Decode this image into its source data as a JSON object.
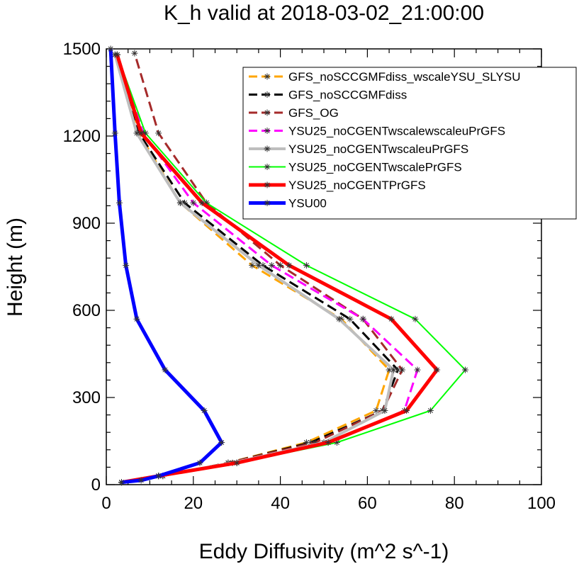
{
  "chart_data": {
    "type": "line",
    "title": "K_h valid at 2018-03-02_21:00:00",
    "xlabel": "Eddy Diffusivity (m^2 s^-1)",
    "ylabel": "Height (m)",
    "xlim": [
      0,
      100
    ],
    "ylim": [
      0,
      1500
    ],
    "xticks": [
      "0",
      "20",
      "40",
      "60",
      "80",
      "100"
    ],
    "yticks": [
      "0",
      "300",
      "600",
      "900",
      "1200",
      "1500"
    ],
    "legend_position": "top-right",
    "grid": false,
    "series": [
      {
        "name": "GFS_noSCCGMFdiss_wscaleYSU_SLYSU",
        "color": "#ffa500",
        "dash": "dashed",
        "width": 3,
        "points": [
          [
            3.5,
            8
          ],
          [
            13,
            30
          ],
          [
            28,
            75
          ],
          [
            46,
            145
          ],
          [
            62,
            255
          ],
          [
            65,
            395
          ],
          [
            54,
            570
          ],
          [
            33.5,
            755
          ],
          [
            17,
            970
          ],
          [
            7.5,
            1210
          ],
          [
            2,
            1480
          ]
        ]
      },
      {
        "name": "GFS_noSCCGMFdiss",
        "color": "#000000",
        "dash": "dashed",
        "width": 3,
        "points": [
          [
            3.5,
            8
          ],
          [
            13,
            30
          ],
          [
            28,
            75
          ],
          [
            47,
            145
          ],
          [
            63.5,
            255
          ],
          [
            67,
            395
          ],
          [
            56,
            570
          ],
          [
            36,
            755
          ],
          [
            18,
            970
          ],
          [
            7.5,
            1210
          ],
          [
            2.5,
            1480
          ]
        ]
      },
      {
        "name": "GFS_OG",
        "color": "#a52a2a",
        "dash": "dashed",
        "width": 3,
        "points": [
          [
            3.5,
            8
          ],
          [
            13,
            30
          ],
          [
            28,
            75
          ],
          [
            48,
            145
          ],
          [
            63.5,
            255
          ],
          [
            68,
            395
          ],
          [
            59,
            570
          ],
          [
            40,
            755
          ],
          [
            23,
            970
          ],
          [
            12,
            1210
          ],
          [
            6.5,
            1485
          ]
        ]
      },
      {
        "name": "YSU25_noCGENTwscalewscaleuPrGFS",
        "color": "#ff00ff",
        "dash": "dashed",
        "width": 3,
        "points": [
          [
            3.5,
            8
          ],
          [
            12,
            30
          ],
          [
            30,
            75
          ],
          [
            51,
            145
          ],
          [
            68.5,
            255
          ],
          [
            71.5,
            395
          ],
          [
            59,
            570
          ],
          [
            38,
            755
          ],
          [
            20,
            970
          ],
          [
            8.5,
            1210
          ],
          [
            2.5,
            1480
          ]
        ]
      },
      {
        "name": "YSU25_noCGENTwscaleuPrGFS",
        "color": "#bebebe",
        "dash": "solid",
        "width": 4,
        "points": [
          [
            3.5,
            8
          ],
          [
            12,
            30
          ],
          [
            29,
            75
          ],
          [
            50,
            145
          ],
          [
            64,
            255
          ],
          [
            66,
            395
          ],
          [
            53.5,
            570
          ],
          [
            35,
            755
          ],
          [
            17,
            970
          ],
          [
            7,
            1210
          ],
          [
            2,
            1480
          ]
        ]
      },
      {
        "name": "YSU25_noCGENTwscalePrGFS",
        "color": "#00ff00",
        "dash": "solid",
        "width": 2,
        "points": [
          [
            3.5,
            8
          ],
          [
            12,
            30
          ],
          [
            30,
            75
          ],
          [
            53,
            145
          ],
          [
            74.5,
            255
          ],
          [
            82.5,
            395
          ],
          [
            71,
            570
          ],
          [
            46,
            755
          ],
          [
            23,
            970
          ],
          [
            9,
            1210
          ],
          [
            2.5,
            1480
          ]
        ]
      },
      {
        "name": "YSU25_noCGENTPrGFS",
        "color": "#ff0000",
        "dash": "solid",
        "width": 5,
        "points": [
          [
            3.5,
            8
          ],
          [
            12,
            30
          ],
          [
            30,
            75
          ],
          [
            51,
            145
          ],
          [
            69,
            255
          ],
          [
            76,
            395
          ],
          [
            65.5,
            570
          ],
          [
            42,
            755
          ],
          [
            22,
            970
          ],
          [
            8,
            1210
          ],
          [
            2.5,
            1480
          ]
        ]
      },
      {
        "name": "YSU00",
        "color": "#0000ff",
        "dash": "solid",
        "width": 5,
        "points": [
          [
            3.5,
            8
          ],
          [
            8,
            15
          ],
          [
            12,
            30
          ],
          [
            21.5,
            75
          ],
          [
            26.5,
            145
          ],
          [
            22.5,
            255
          ],
          [
            13.5,
            395
          ],
          [
            7,
            570
          ],
          [
            4.5,
            755
          ],
          [
            3,
            970
          ],
          [
            2,
            1210
          ],
          [
            1,
            1500
          ]
        ]
      }
    ]
  }
}
